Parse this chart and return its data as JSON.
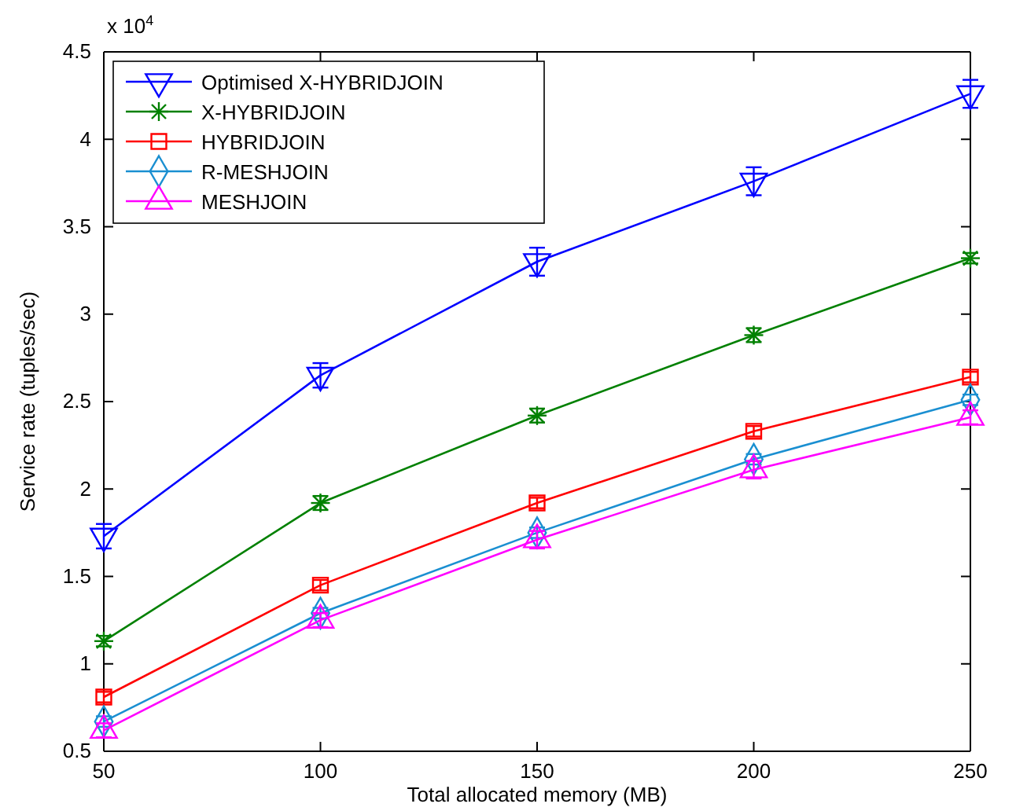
{
  "chart_data": {
    "type": "line",
    "xlabel": "Total allocated memory (MB)",
    "ylabel": "Service rate (tuples/sec)",
    "annotations": [
      "x 10$^{4}$"
    ],
    "x": [
      50,
      100,
      150,
      200,
      250
    ],
    "xlim": [
      50,
      250
    ],
    "xticks": [
      50,
      100,
      150,
      200,
      250
    ],
    "ylim": [
      0.5,
      4.5
    ],
    "yticks": [
      0.5,
      1,
      1.5,
      2,
      2.5,
      3,
      3.5,
      4,
      4.5
    ],
    "grid": false,
    "legend": "top left",
    "line_style": "solid",
    "series": [
      {
        "name": "Optimised X-HYBRIDJOIN",
        "color": "#0000ff",
        "marker": "triangle-down",
        "values": [
          1.73,
          2.65,
          3.3,
          3.76,
          4.26
        ],
        "errors": [
          0.07,
          0.07,
          0.08,
          0.08,
          0.08
        ]
      },
      {
        "name": "X-HYBRIDJOIN",
        "color": "#008000",
        "marker": "cross",
        "values": [
          1.13,
          1.92,
          2.42,
          2.88,
          3.32
        ],
        "errors": [
          0.03,
          0.04,
          0.04,
          0.04,
          0.03
        ]
      },
      {
        "name": "HYBRIDJOIN",
        "color": "#ff0000",
        "marker": "square",
        "values": [
          0.81,
          1.45,
          1.92,
          2.33,
          2.64
        ],
        "errors": [
          0.03,
          0.03,
          0.03,
          0.03,
          0.03
        ]
      },
      {
        "name": "R-MESHJOIN",
        "color": "#1a8fd1",
        "marker": "diamond",
        "values": [
          0.67,
          1.29,
          1.75,
          2.17,
          2.51
        ],
        "errors": [
          0.03,
          0.03,
          0.03,
          0.03,
          0.03
        ]
      },
      {
        "name": "MESHJOIN",
        "color": "#ff00ff",
        "marker": "triangle",
        "values": [
          0.62,
          1.25,
          1.71,
          2.11,
          2.41
        ],
        "errors": [
          0.04,
          0.04,
          0.05,
          0.05,
          0.04
        ]
      }
    ]
  }
}
